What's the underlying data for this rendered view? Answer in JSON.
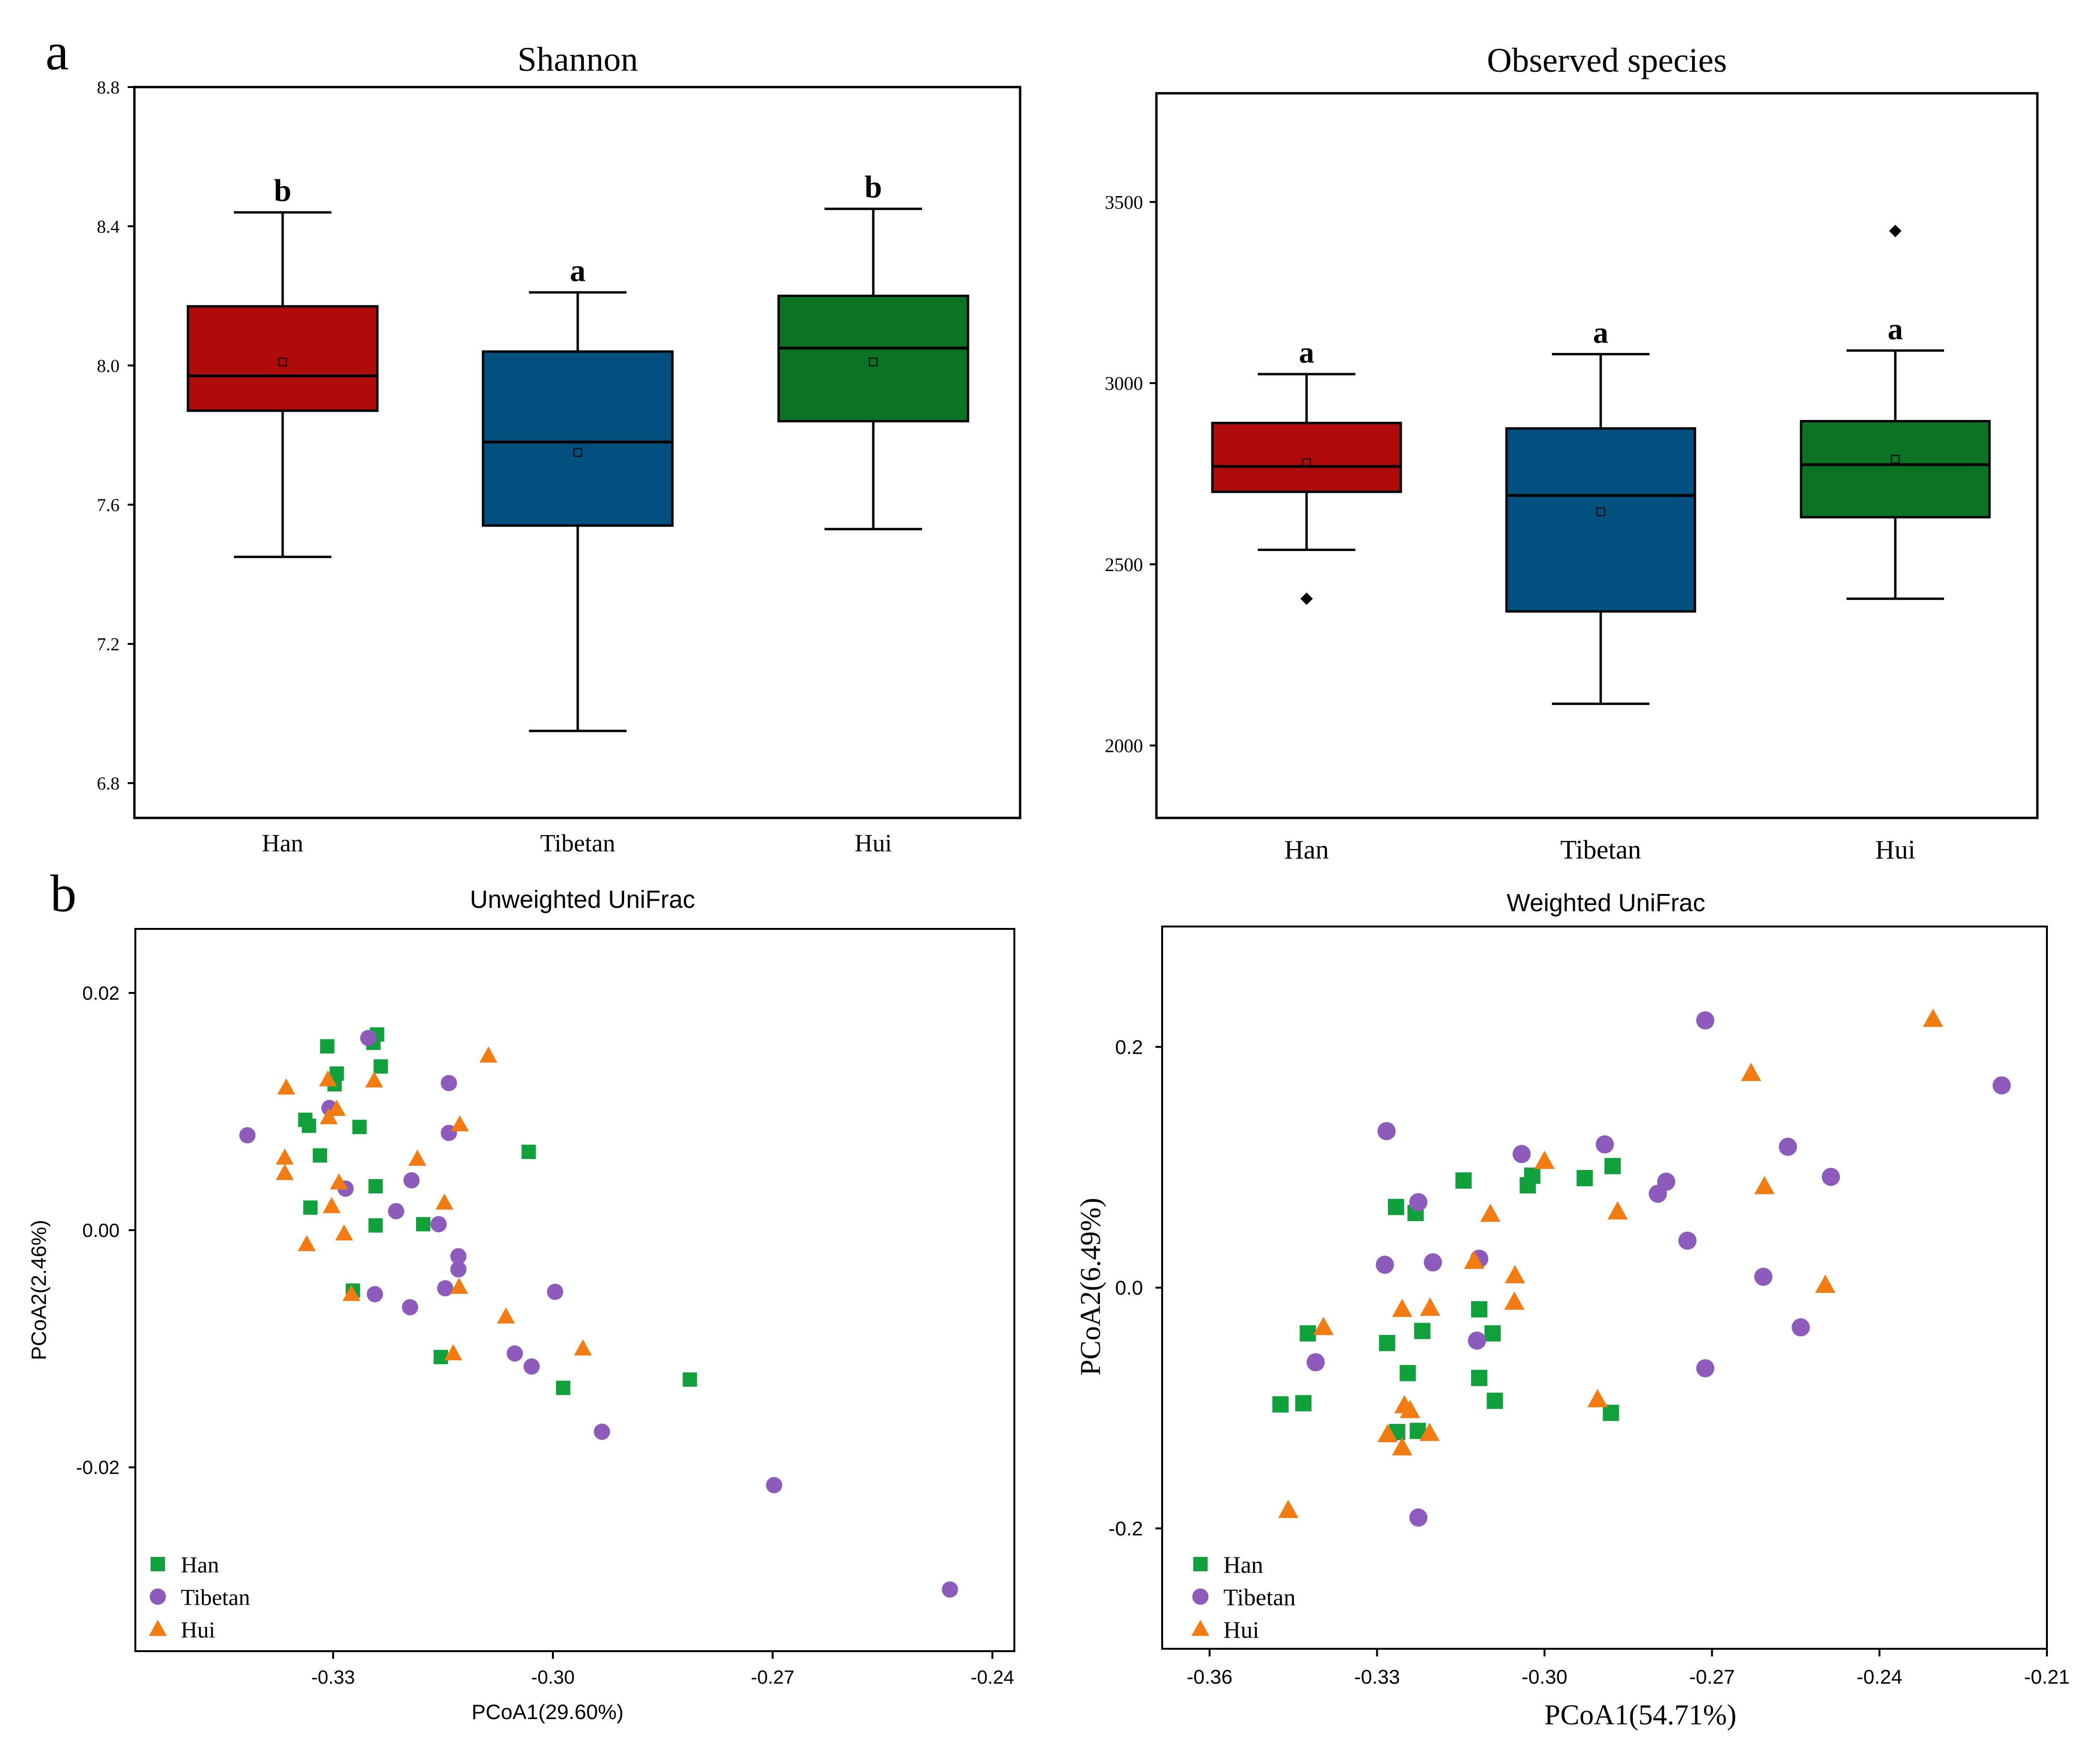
{
  "panel_labels": {
    "a": "a",
    "b": "b"
  },
  "colors": {
    "han": "#b00b0b",
    "tibetan": "#01507f",
    "hui": "#0b7324",
    "han_point": "#10a03c",
    "tibetan_point": "#8c5bbb",
    "hui_point": "#f27c12"
  },
  "chart_data": [
    {
      "id": "shannon",
      "type": "box",
      "title": "Shannon",
      "categories": [
        "Han",
        "Tibetan",
        "Hui"
      ],
      "ylim": [
        6.7,
        8.8
      ],
      "yticks": [
        6.8,
        7.2,
        7.6,
        8.0,
        8.4,
        8.8
      ],
      "ytick_labels": [
        "6.8",
        "7.2",
        "7.6",
        "8.0",
        "8.4",
        "8.8"
      ],
      "boxes": [
        {
          "group": "Han",
          "whisker_low": 7.45,
          "q1": 7.87,
          "median": 7.97,
          "q3": 8.17,
          "whisker_high": 8.44,
          "mean": 8.01,
          "outliers": [],
          "letter": "b"
        },
        {
          "group": "Tibetan",
          "whisker_low": 6.95,
          "q1": 7.54,
          "median": 7.78,
          "q3": 8.04,
          "whisker_high": 8.21,
          "mean": 7.75,
          "outliers": [],
          "letter": "a"
        },
        {
          "group": "Hui",
          "whisker_low": 7.53,
          "q1": 7.84,
          "median": 8.05,
          "q3": 8.2,
          "whisker_high": 8.45,
          "mean": 8.01,
          "outliers": [],
          "letter": "b"
        }
      ]
    },
    {
      "id": "observed",
      "type": "box",
      "title": "Observed species",
      "categories": [
        "Han",
        "Tibetan",
        "Hui"
      ],
      "ylim": [
        1800,
        3800
      ],
      "yticks": [
        2000,
        2500,
        3000,
        3500
      ],
      "ytick_labels": [
        "2000",
        "2500",
        "3000",
        "3500"
      ],
      "boxes": [
        {
          "group": "Han",
          "whisker_low": 2540,
          "q1": 2700,
          "median": 2770,
          "q3": 2890,
          "whisker_high": 3025,
          "mean": 2780,
          "outliers": [
            2405
          ],
          "letter": "a"
        },
        {
          "group": "Tibetan",
          "whisker_low": 2115,
          "q1": 2370,
          "median": 2690,
          "q3": 2875,
          "whisker_high": 3080,
          "mean": 2645,
          "outliers": [],
          "letter": "a"
        },
        {
          "group": "Hui",
          "whisker_low": 2405,
          "q1": 2630,
          "median": 2775,
          "q3": 2895,
          "whisker_high": 3090,
          "mean": 2790,
          "outliers": [
            3420
          ],
          "letter": "a"
        }
      ]
    },
    {
      "id": "unweighted",
      "type": "scatter",
      "title": "Unweighted UniFrac",
      "xlabel": "PCoA1(29.60%)",
      "ylabel": "PCoA2(2.46%)",
      "xlim": [
        -0.357,
        -0.237
      ],
      "ylim": [
        -0.0355,
        0.0254
      ],
      "xticks": [
        -0.33,
        -0.3,
        -0.27,
        -0.24
      ],
      "xtick_labels": [
        "-0.33",
        "-0.30",
        "-0.27",
        "-0.24"
      ],
      "yticks": [
        -0.02,
        0.0,
        0.02
      ],
      "ytick_labels": [
        "-0.02",
        "0.00",
        "0.02"
      ],
      "legend": [
        "Han",
        "Tibetan",
        "Hui"
      ],
      "series": [
        {
          "name": "Han",
          "marker": "square",
          "points": [
            [
              -0.324,
              0.0165
            ],
            [
              -0.3245,
              0.0158
            ],
            [
              -0.3235,
              0.0138
            ],
            [
              -0.3308,
              0.0155
            ],
            [
              -0.3295,
              0.0132
            ],
            [
              -0.3298,
              0.0123
            ],
            [
              -0.3338,
              0.0093
            ],
            [
              -0.3333,
              0.0088
            ],
            [
              -0.3264,
              0.0087
            ],
            [
              -0.3318,
              0.0063
            ],
            [
              -0.3242,
              0.0037
            ],
            [
              -0.3331,
              0.0019
            ],
            [
              -0.3242,
              0.0004
            ],
            [
              -0.3177,
              0.0005
            ],
            [
              -0.3033,
              0.0066
            ],
            [
              -0.3273,
              -0.0051
            ],
            [
              -0.3153,
              -0.0107
            ],
            [
              -0.2986,
              -0.0133
            ],
            [
              -0.2813,
              -0.0126
            ]
          ]
        },
        {
          "name": "Tibetan",
          "marker": "circle",
          "points": [
            [
              -0.3252,
              0.0162
            ],
            [
              -0.3142,
              0.0124
            ],
            [
              -0.3305,
              0.0103
            ],
            [
              -0.3142,
              0.0082
            ],
            [
              -0.3417,
              0.008
            ],
            [
              -0.3193,
              0.0042
            ],
            [
              -0.3283,
              0.0035
            ],
            [
              -0.3214,
              0.0016
            ],
            [
              -0.3156,
              0.0005
            ],
            [
              -0.3129,
              -0.0022
            ],
            [
              -0.3129,
              -0.0033
            ],
            [
              -0.3147,
              -0.0049
            ],
            [
              -0.3243,
              -0.0054
            ],
            [
              -0.3195,
              -0.0065
            ],
            [
              -0.2997,
              -0.0052
            ],
            [
              -0.3052,
              -0.0104
            ],
            [
              -0.3029,
              -0.0115
            ],
            [
              -0.2933,
              -0.017
            ],
            [
              -0.2698,
              -0.0215
            ],
            [
              -0.2458,
              -0.0303
            ]
          ]
        },
        {
          "name": "Hui",
          "marker": "triangle",
          "points": [
            [
              -0.3088,
              0.0147
            ],
            [
              -0.3244,
              0.0126
            ],
            [
              -0.3307,
              0.0127
            ],
            [
              -0.3364,
              0.012
            ],
            [
              -0.3295,
              0.0102
            ],
            [
              -0.3306,
              0.0095
            ],
            [
              -0.3127,
              0.0089
            ],
            [
              -0.3366,
              0.0061
            ],
            [
              -0.3185,
              0.006
            ],
            [
              -0.3366,
              0.0048
            ],
            [
              -0.3292,
              0.004
            ],
            [
              -0.3302,
              0.002
            ],
            [
              -0.3148,
              0.0023
            ],
            [
              -0.3285,
              -0.0003
            ],
            [
              -0.3336,
              -0.0012
            ],
            [
              -0.3275,
              -0.0054
            ],
            [
              -0.3128,
              -0.0048
            ],
            [
              -0.3064,
              -0.0073
            ],
            [
              -0.2959,
              -0.01
            ],
            [
              -0.3136,
              -0.0104
            ]
          ]
        }
      ]
    },
    {
      "id": "weighted",
      "type": "scatter",
      "title": "Weighted UniFrac",
      "xlabel": "PCoA1(54.71%)",
      "ylabel": "PCoA2(6.49%)",
      "xlim": [
        -0.3685,
        -0.21
      ],
      "ylim": [
        -0.3,
        0.3
      ],
      "xticks": [
        -0.36,
        -0.33,
        -0.3,
        -0.27,
        -0.24,
        -0.21
      ],
      "xtick_labels": [
        "-0.36",
        "-0.33",
        "-0.30",
        "-0.27",
        "-0.24",
        "-0.21"
      ],
      "yticks": [
        -0.2,
        0.0,
        0.2
      ],
      "ytick_labels": [
        "-0.2",
        "0.0",
        "0.2"
      ],
      "legend": [
        "Han",
        "Tibetan",
        "Hui"
      ],
      "series": [
        {
          "name": "Han",
          "marker": "square",
          "points": [
            [
              -0.3266,
              0.067
            ],
            [
              -0.3231,
              0.062
            ],
            [
              -0.3145,
              0.089
            ],
            [
              -0.303,
              0.085
            ],
            [
              -0.3022,
              0.093
            ],
            [
              -0.2928,
              0.091
            ],
            [
              -0.2878,
              0.101
            ],
            [
              -0.3424,
              -0.038
            ],
            [
              -0.3282,
              -0.046
            ],
            [
              -0.3219,
              -0.036
            ],
            [
              -0.3117,
              -0.018
            ],
            [
              -0.3093,
              -0.038
            ],
            [
              -0.3245,
              -0.071
            ],
            [
              -0.3117,
              -0.075
            ],
            [
              -0.3089,
              -0.094
            ],
            [
              -0.3473,
              -0.097
            ],
            [
              -0.3432,
              -0.096
            ],
            [
              -0.3264,
              -0.12
            ],
            [
              -0.3227,
              -0.119
            ],
            [
              -0.2881,
              -0.104
            ]
          ]
        },
        {
          "name": "Tibetan",
          "marker": "circle",
          "points": [
            [
              -0.2712,
              0.222
            ],
            [
              -0.2181,
              0.168
            ],
            [
              -0.3283,
              0.13
            ],
            [
              -0.3041,
              0.111
            ],
            [
              -0.2892,
              0.119
            ],
            [
              -0.2782,
              0.088
            ],
            [
              -0.2797,
              0.078
            ],
            [
              -0.2564,
              0.117
            ],
            [
              -0.2487,
              0.092
            ],
            [
              -0.3226,
              0.071
            ],
            [
              -0.2744,
              0.039
            ],
            [
              -0.3117,
              0.024
            ],
            [
              -0.3286,
              0.019
            ],
            [
              -0.32,
              0.021
            ],
            [
              -0.2608,
              0.009
            ],
            [
              -0.2541,
              -0.033
            ],
            [
              -0.3121,
              -0.044
            ],
            [
              -0.341,
              -0.062
            ],
            [
              -0.2712,
              -0.067
            ],
            [
              -0.3226,
              -0.191
            ]
          ]
        },
        {
          "name": "Hui",
          "marker": "triangle",
          "points": [
            [
              -0.2304,
              0.223
            ],
            [
              -0.263,
              0.178
            ],
            [
              -0.3,
              0.105
            ],
            [
              -0.2606,
              0.084
            ],
            [
              -0.2869,
              0.063
            ],
            [
              -0.3097,
              0.061
            ],
            [
              -0.3126,
              0.022
            ],
            [
              -0.3053,
              0.01
            ],
            [
              -0.3054,
              -0.012
            ],
            [
              -0.3255,
              -0.018
            ],
            [
              -0.3205,
              -0.017
            ],
            [
              -0.3396,
              -0.033
            ],
            [
              -0.2497,
              0.002
            ],
            [
              -0.2905,
              -0.093
            ],
            [
              -0.3251,
              -0.098
            ],
            [
              -0.3241,
              -0.102
            ],
            [
              -0.3281,
              -0.122
            ],
            [
              -0.3206,
              -0.121
            ],
            [
              -0.3255,
              -0.133
            ],
            [
              -0.3459,
              -0.185
            ]
          ]
        }
      ]
    }
  ]
}
